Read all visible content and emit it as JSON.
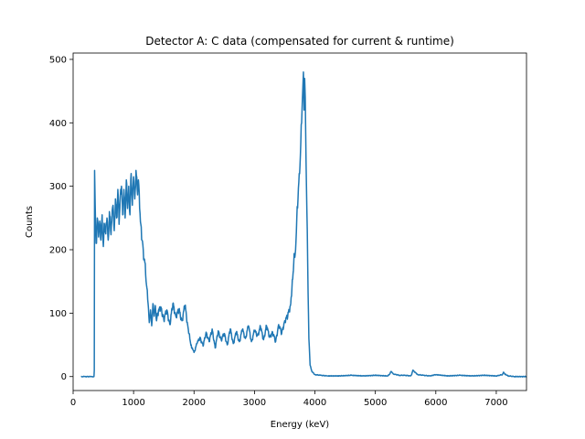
{
  "chart_data": {
    "type": "line",
    "title": "Detector A: C data (compensated for current & runtime)",
    "xlabel": "Energy (keV)",
    "ylabel": "Counts",
    "xlim": [
      0,
      7500
    ],
    "ylim": [
      -22,
      510
    ],
    "xticks": [
      0,
      1000,
      2000,
      3000,
      4000,
      5000,
      6000,
      7000
    ],
    "yticks": [
      0,
      100,
      200,
      300,
      400,
      500
    ],
    "grid": false,
    "legend": "none",
    "colors": {
      "series": "#1f77b4",
      "axes": "#000000",
      "background": "#ffffff"
    },
    "series": [
      {
        "x": [
          130,
          200,
          300,
          345,
          350,
          355,
          365,
          380,
          400,
          420,
          440,
          460,
          480,
          500,
          520,
          540,
          560,
          580,
          600,
          620,
          640,
          660,
          680,
          700,
          720,
          740,
          760,
          780,
          800,
          820,
          840,
          860,
          880,
          900,
          920,
          940,
          960,
          980,
          1000,
          1020,
          1040,
          1060,
          1080,
          1100,
          1120,
          1140,
          1160,
          1180,
          1200,
          1220,
          1240,
          1260,
          1280,
          1300,
          1320,
          1340,
          1360,
          1380,
          1400,
          1450,
          1500,
          1550,
          1600,
          1650,
          1700,
          1750,
          1800,
          1850,
          1900,
          1930,
          1960,
          2000,
          2050,
          2100,
          2150,
          2200,
          2250,
          2300,
          2350,
          2400,
          2450,
          2500,
          2550,
          2600,
          2650,
          2700,
          2750,
          2800,
          2850,
          2900,
          2950,
          3000,
          3050,
          3100,
          3150,
          3200,
          3250,
          3300,
          3350,
          3400,
          3450,
          3500,
          3550,
          3600,
          3620,
          3650,
          3680,
          3700,
          3720,
          3740,
          3760,
          3780,
          3790,
          3800,
          3810,
          3820,
          3830,
          3840,
          3860,
          3880,
          3900,
          3920,
          3950,
          4000,
          4100,
          4200,
          4400,
          4600,
          4800,
          5000,
          5200,
          5230,
          5260,
          5300,
          5400,
          5500,
          5580,
          5600,
          5620,
          5700,
          5800,
          5900,
          5950,
          6000,
          6200,
          6400,
          6600,
          6800,
          7000,
          7100,
          7120,
          7140,
          7200,
          7300,
          7500
        ],
        "y": [
          0,
          0,
          0,
          0,
          10,
          325,
          270,
          210,
          250,
          220,
          245,
          215,
          255,
          205,
          240,
          225,
          250,
          215,
          260,
          230,
          245,
          270,
          230,
          280,
          250,
          295,
          240,
          285,
          300,
          255,
          295,
          250,
          310,
          265,
          300,
          255,
          320,
          270,
          315,
          280,
          325,
          295,
          310,
          265,
          240,
          215,
          200,
          185,
          160,
          140,
          115,
          85,
          105,
          80,
          115,
          95,
          112,
          88,
          100,
          110,
          90,
          105,
          82,
          115,
          95,
          105,
          88,
          112,
          78,
          60,
          45,
          38,
          52,
          62,
          48,
          70,
          55,
          75,
          45,
          72,
          58,
          68,
          50,
          75,
          52,
          70,
          55,
          74,
          60,
          80,
          55,
          72,
          65,
          78,
          58,
          80,
          62,
          70,
          55,
          82,
          68,
          88,
          95,
          115,
          140,
          180,
          200,
          250,
          280,
          320,
          350,
          400,
          430,
          455,
          480,
          420,
          470,
          440,
          300,
          180,
          60,
          18,
          8,
          3,
          2,
          1,
          1,
          2,
          1,
          2,
          1,
          3,
          8,
          4,
          2,
          2,
          1,
          3,
          10,
          3,
          2,
          1,
          2,
          3,
          1,
          2,
          1,
          2,
          1,
          3,
          7,
          4,
          1,
          0,
          0
        ]
      }
    ]
  }
}
